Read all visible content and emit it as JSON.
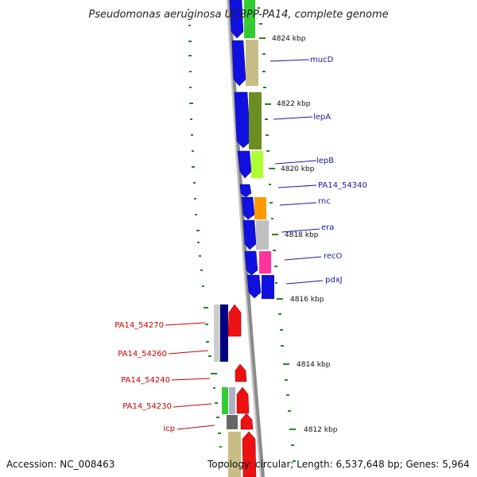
{
  "title": "Pseudomonas aeruginosa UCBPP-PA14, complete genome",
  "footer": {
    "accession": "Accession: NC_008463",
    "summary": "Topology: circular; Length: 6,537,648 bp; Genes: 5,964"
  },
  "kbp_labels": [
    "4824 kbp",
    "4822 kbp",
    "4820 kbp",
    "4818 kbp",
    "4816 kbp",
    "4814 kbp",
    "4812 kbp"
  ],
  "genes_right": [
    "mucD",
    "lepA",
    "lepB",
    "PA14_54340",
    "rnc",
    "era",
    "recO",
    "pdxJ"
  ],
  "genes_left": [
    "PA14_54270",
    "PA14_54260",
    "PA14_54240",
    "PA14_54230",
    "icp"
  ],
  "colors": {
    "forward_strand": "#1010e0",
    "reverse_strand": "#ee1111",
    "label_blue": "#1a1aa8",
    "label_red": "#cc0000",
    "tick_green": "#1f8a1f",
    "backbone": "#8a8a8a"
  }
}
